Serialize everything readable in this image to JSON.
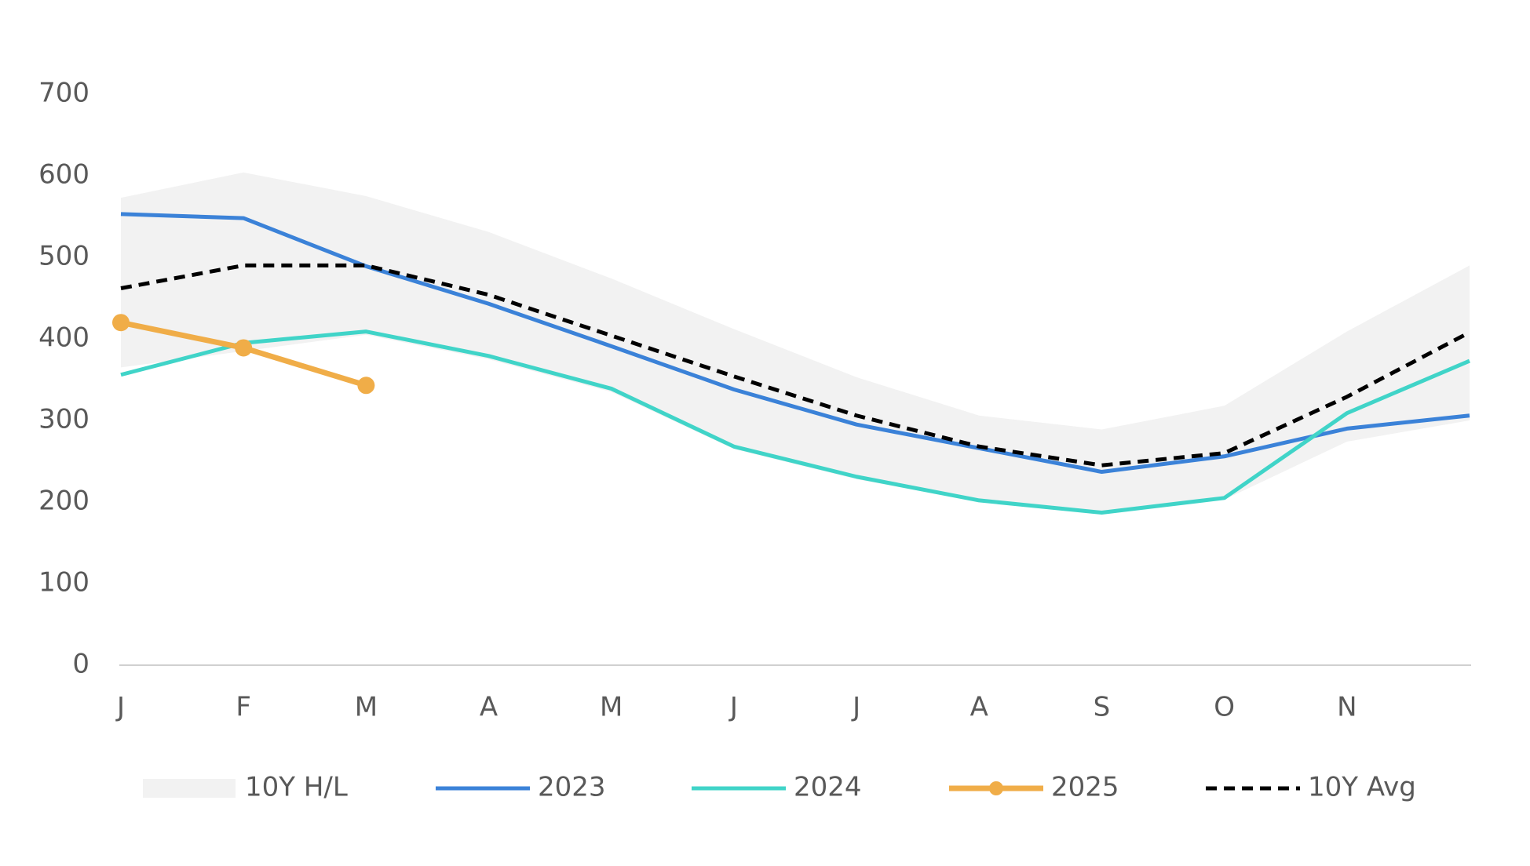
{
  "chart_data": {
    "type": "line",
    "categories": [
      "J",
      "F",
      "M",
      "A",
      "M",
      "J",
      "J",
      "A",
      "S",
      "O",
      "N",
      null
    ],
    "ylim": [
      0,
      700
    ],
    "yticks": [
      0,
      100,
      200,
      300,
      400,
      500,
      600,
      700
    ],
    "band": {
      "name": "10Y H/L",
      "color": "#f2f2f2",
      "high": [
        573,
        604,
        575,
        531,
        474,
        412,
        353,
        306,
        289,
        318,
        409,
        490
      ],
      "low": [
        365,
        385,
        405,
        375,
        335,
        265,
        228,
        200,
        185,
        203,
        274,
        300
      ]
    },
    "series": [
      {
        "name": "2023",
        "color": "#3b82d8",
        "values": [
          553,
          548,
          489,
          443,
          391,
          338,
          295,
          266,
          237,
          256,
          290,
          306
        ]
      },
      {
        "name": "2024",
        "color": "#40d4c8",
        "values": [
          356,
          395,
          409,
          379,
          339,
          268,
          231,
          202,
          187,
          205,
          309,
          373
        ]
      },
      {
        "name": "2025",
        "color": "#f0ad48",
        "markers": true,
        "values": [
          420,
          389,
          343,
          null,
          null,
          null,
          null,
          null,
          null,
          null,
          null,
          null
        ]
      },
      {
        "name": "10Y Avg",
        "color": "#000000",
        "dashed": true,
        "values": [
          462,
          490,
          490,
          454,
          404,
          354,
          306,
          268,
          245,
          260,
          329,
          408
        ]
      }
    ]
  }
}
